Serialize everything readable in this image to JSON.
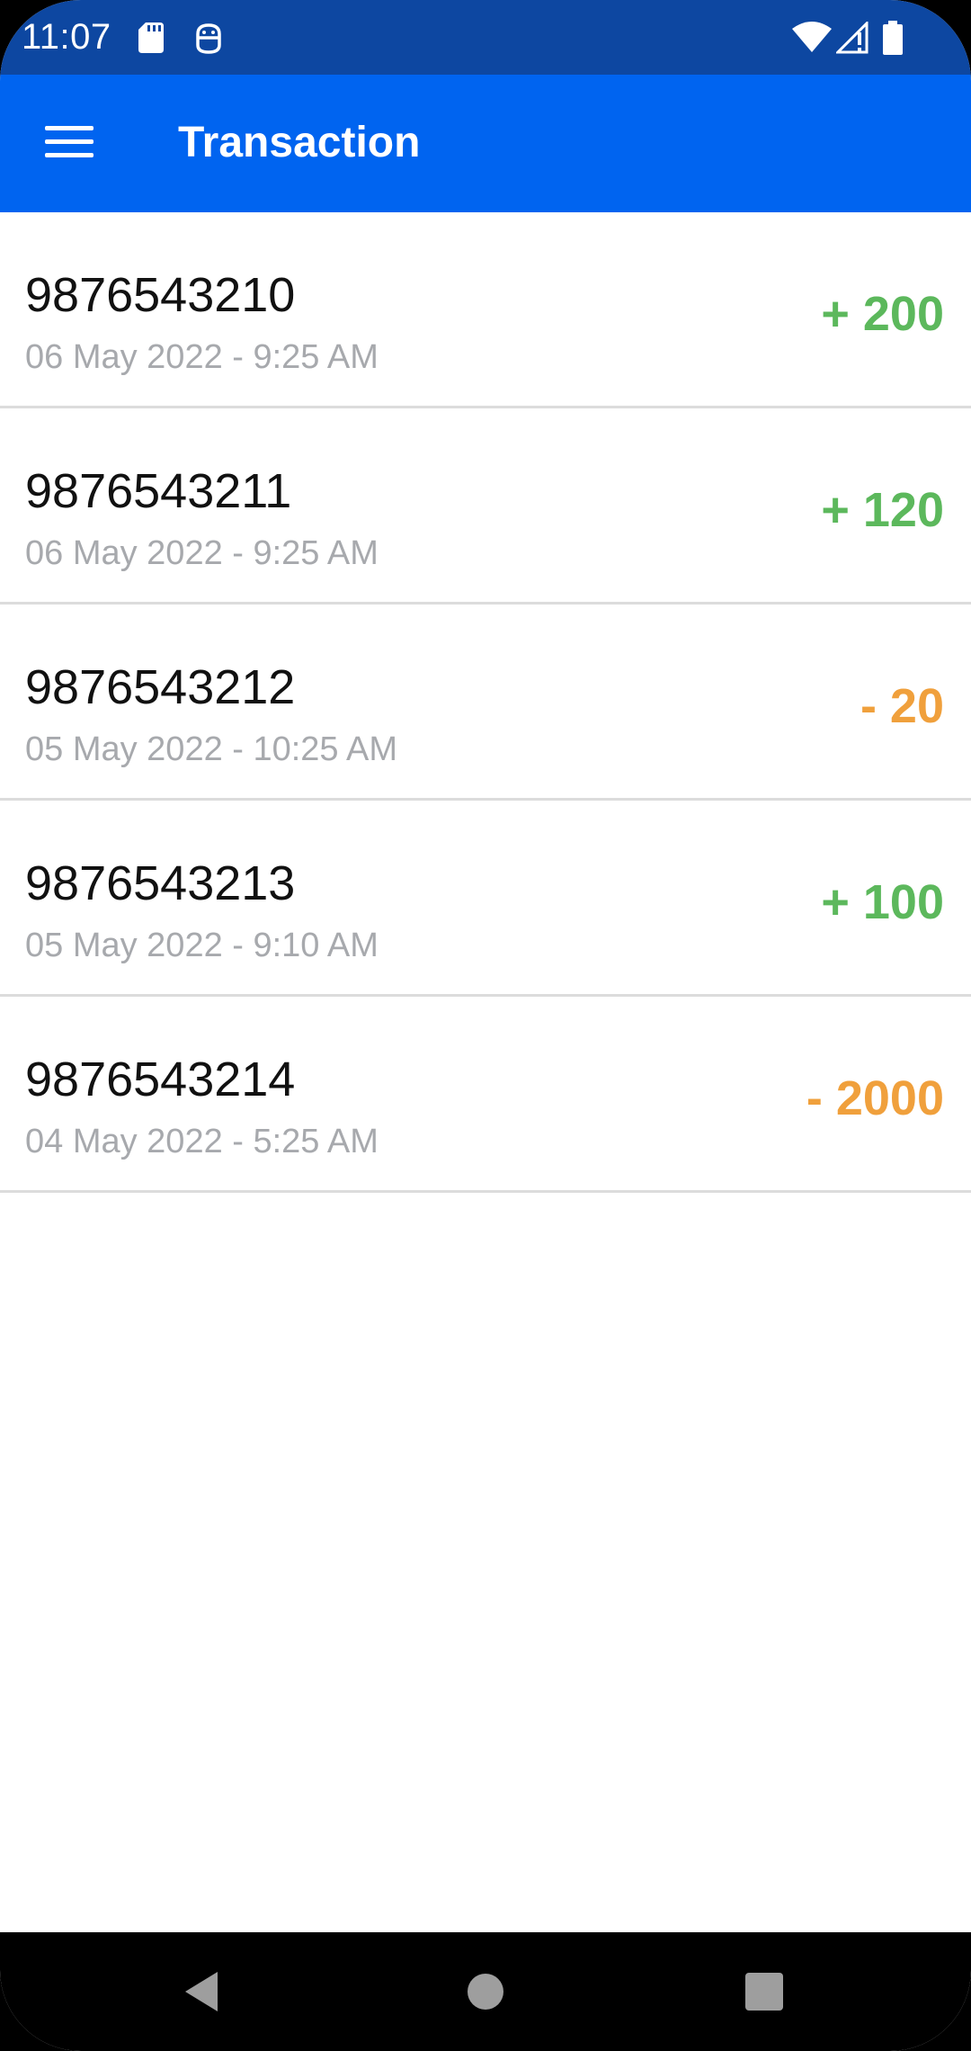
{
  "status_bar": {
    "time": "11:07",
    "icons": [
      "sd-card-icon",
      "android-debug-icon",
      "wifi-icon",
      "cellular-signal-icon",
      "battery-icon"
    ]
  },
  "app_bar": {
    "menu_icon": "hamburger-menu-icon",
    "title": "Transaction"
  },
  "colors": {
    "status_bar": "#0d47a1",
    "app_bar": "#0064f0",
    "credit": "#5cb85c",
    "debit": "#f0a03c",
    "date_text": "#a7a9ad"
  },
  "transactions": [
    {
      "number": "9876543210",
      "date": "06 May 2022 - 9:25 AM",
      "amount": "+ 200",
      "type": "credit"
    },
    {
      "number": "9876543211",
      "date": "06 May 2022 - 9:25 AM",
      "amount": "+ 120",
      "type": "credit"
    },
    {
      "number": "9876543212",
      "date": "05 May 2022 - 10:25 AM",
      "amount": "- 20",
      "type": "debit"
    },
    {
      "number": "9876543213",
      "date": "05 May 2022 - 9:10 AM",
      "amount": "+ 100",
      "type": "credit"
    },
    {
      "number": "9876543214",
      "date": "04 May 2022 - 5:25 AM",
      "amount": "- 2000",
      "type": "debit"
    }
  ],
  "nav_bar": {
    "buttons": [
      "back-icon",
      "home-icon",
      "recents-icon"
    ]
  }
}
